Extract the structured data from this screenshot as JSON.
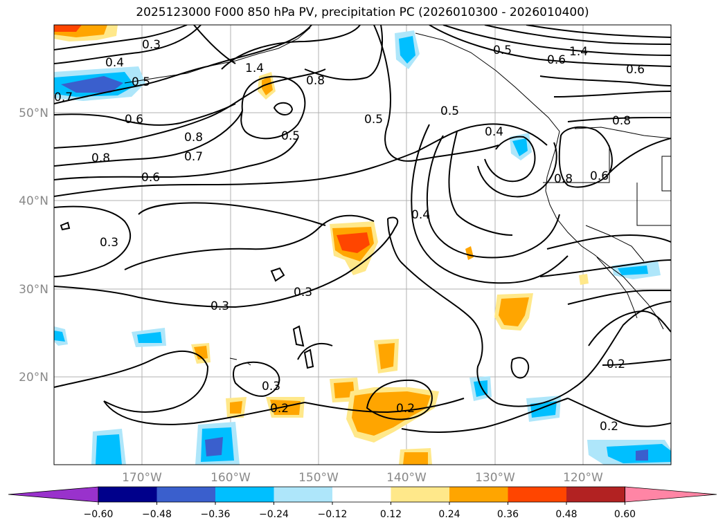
{
  "title": "2025123000 F000 850 hPa PV, precipitation PC (2026010300 - 2026010400)",
  "lat_labels": [
    "50°N",
    "40°N",
    "30°N",
    "20°N"
  ],
  "lon_labels": [
    "170°W",
    "160°W",
    "150°W",
    "140°W",
    "130°W",
    "120°W"
  ],
  "contour_labels": [
    "0.3",
    "0.4",
    "0.5",
    "0.7",
    "0.6",
    "1.4",
    "0.8",
    "0.5",
    "0.5",
    "0.5",
    "0.5",
    "0.8",
    "0.7",
    "0.6",
    "0.8",
    "0.4",
    "0.4",
    "0.3",
    "0.3",
    "0.3",
    "0.3",
    "0.2",
    "0.2",
    "0.2",
    "0.2",
    "0.8",
    "0.6",
    "0.6",
    "0.8",
    "1.4",
    "0.6"
  ],
  "colorbar": {
    "ticks": [
      "−0.60",
      "−0.48",
      "−0.36",
      "−0.24",
      "−0.12",
      "0.12",
      "0.24",
      "0.36",
      "0.48",
      "0.60"
    ],
    "colors": [
      "#9932cc",
      "#00008b",
      "#3a5fcd",
      "#00bfff",
      "#aee6fa",
      "#ffffff",
      "#ffe88a",
      "#ffa500",
      "#ff4500",
      "#b22222",
      "#ff85a5"
    ]
  }
}
